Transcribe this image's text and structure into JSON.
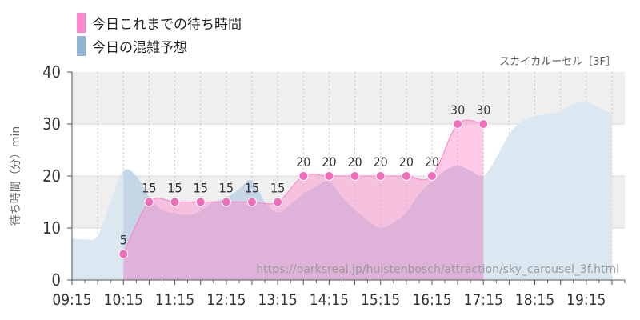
{
  "chart_data": {
    "type": "area",
    "legend": [
      {
        "label": "今日これまでの待ち時間",
        "color": "#ff88cc"
      },
      {
        "label": "今日の混雑予想",
        "color": "#90b4d4"
      }
    ],
    "ride_label": "スカイカルーセル［3F］",
    "url": "https://parksreal.jp/huistenbosch/attraction/sky_carousel_3f.html",
    "ylabel": "待ち時間（分）min",
    "ylim": [
      0,
      40
    ],
    "yticks": [
      "0",
      "10",
      "20",
      "30",
      "40"
    ],
    "xticks": [
      "09:15",
      "10:15",
      "11:15",
      "12:15",
      "13:15",
      "14:15",
      "15:15",
      "16:15",
      "17:15",
      "18:15",
      "19:15"
    ],
    "grid": true,
    "series": [
      {
        "name": "今日これまでの待ち時間",
        "color": "#ff88cc",
        "x": [
          "10:15",
          "10:45",
          "11:15",
          "11:45",
          "12:15",
          "12:45",
          "13:15",
          "13:45",
          "14:15",
          "14:45",
          "15:15",
          "15:45",
          "16:15",
          "16:45",
          "17:15"
        ],
        "values": [
          5,
          15,
          15,
          15,
          15,
          15,
          15,
          20,
          20,
          20,
          20,
          20,
          20,
          30,
          30
        ],
        "labels": [
          "5",
          "15",
          "15",
          "15",
          "15",
          "15",
          "15",
          "20",
          "20",
          "20",
          "20",
          "20",
          "20",
          "30",
          "30"
        ]
      },
      {
        "name": "今日の混雑予想",
        "color": "#90b4d4",
        "x": [
          "09:15",
          "09:30",
          "09:45",
          "10:00",
          "10:15",
          "10:30",
          "10:45",
          "11:00",
          "11:15",
          "11:30",
          "11:45",
          "12:00",
          "12:15",
          "12:30",
          "12:45",
          "13:00",
          "13:15",
          "13:30",
          "13:45",
          "14:00",
          "14:15",
          "14:30",
          "14:45",
          "15:00",
          "15:15",
          "15:30",
          "15:45",
          "16:00",
          "16:15",
          "16:30",
          "16:45",
          "17:00",
          "17:15",
          "17:30",
          "17:45",
          "18:00",
          "18:15",
          "18:30",
          "18:45",
          "19:00",
          "19:15",
          "19:30",
          "19:45"
        ],
        "values": [
          8,
          7.8,
          8.5,
          15,
          21,
          20,
          16,
          13.5,
          12.8,
          12.5,
          13.2,
          15,
          15.8,
          17.5,
          19.2,
          15,
          13,
          14.5,
          16.5,
          18,
          19,
          16,
          13.5,
          11.5,
          10,
          11,
          13,
          16.5,
          19,
          21,
          22,
          21,
          20,
          23.5,
          28,
          30.5,
          31.5,
          32,
          32.5,
          33.8,
          34.2,
          33.2,
          31.8
        ]
      }
    ]
  }
}
